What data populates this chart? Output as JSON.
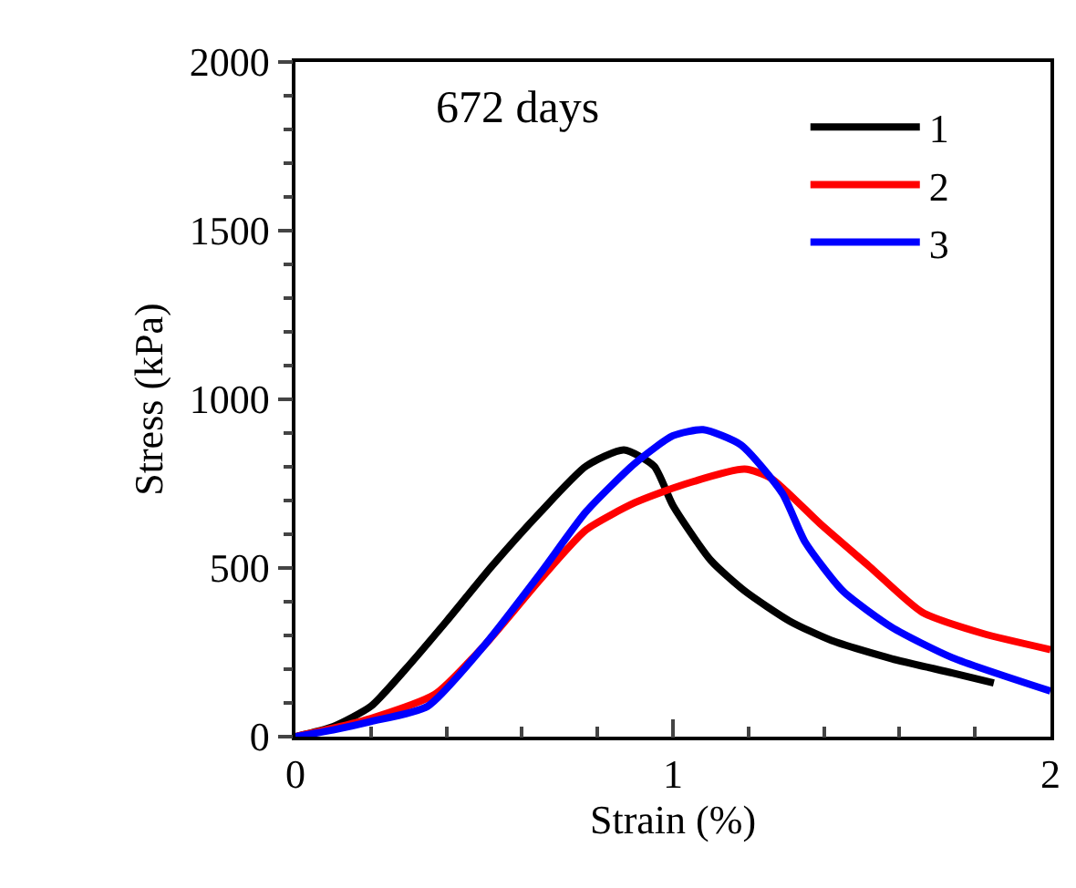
{
  "chart_data": {
    "type": "line",
    "xlabel": "Strain (%)",
    "ylabel": "Stress (kPa)",
    "annotations": [
      "672 days"
    ],
    "xlim": [
      0,
      2
    ],
    "xticks": [
      0,
      1,
      2
    ],
    "ylim": [
      0,
      2000
    ],
    "yticks": [
      0,
      500,
      1000,
      1500,
      2000
    ],
    "grid": false,
    "legend": "top right",
    "marker": "none",
    "line_style": "solid",
    "series": [
      {
        "name": "1",
        "color": "#000000",
        "x": [
          0,
          0.1,
          0.2,
          0.29,
          0.4,
          0.52,
          0.65,
          0.77,
          0.87,
          0.95,
          1.0,
          1.1,
          1.19,
          1.31,
          1.42,
          1.58,
          1.74,
          1.85
        ],
        "values": [
          0,
          30,
          90,
          198,
          342,
          505,
          667,
          802,
          850,
          802,
          685,
          523,
          432,
          342,
          285,
          231,
          189,
          159
        ]
      },
      {
        "name": "2",
        "color": "#ff0000",
        "x": [
          0,
          0.1,
          0.2,
          0.37,
          0.5,
          0.65,
          0.77,
          0.9,
          1.03,
          1.19,
          1.26,
          1.39,
          1.52,
          1.66,
          1.82,
          2.0
        ],
        "values": [
          0,
          25,
          54,
          126,
          270,
          468,
          613,
          694,
          748,
          793,
          766,
          631,
          505,
          369,
          306,
          258
        ]
      },
      {
        "name": "3",
        "color": "#0000ff",
        "x": [
          0,
          0.1,
          0.2,
          0.35,
          0.5,
          0.65,
          0.77,
          0.9,
          1.0,
          1.08,
          1.18,
          1.29,
          1.35,
          1.45,
          1.58,
          1.74,
          2.0
        ],
        "values": [
          0,
          20,
          45,
          90,
          270,
          486,
          667,
          811,
          892,
          910,
          865,
          721,
          577,
          432,
          324,
          234,
          135
        ]
      }
    ]
  }
}
